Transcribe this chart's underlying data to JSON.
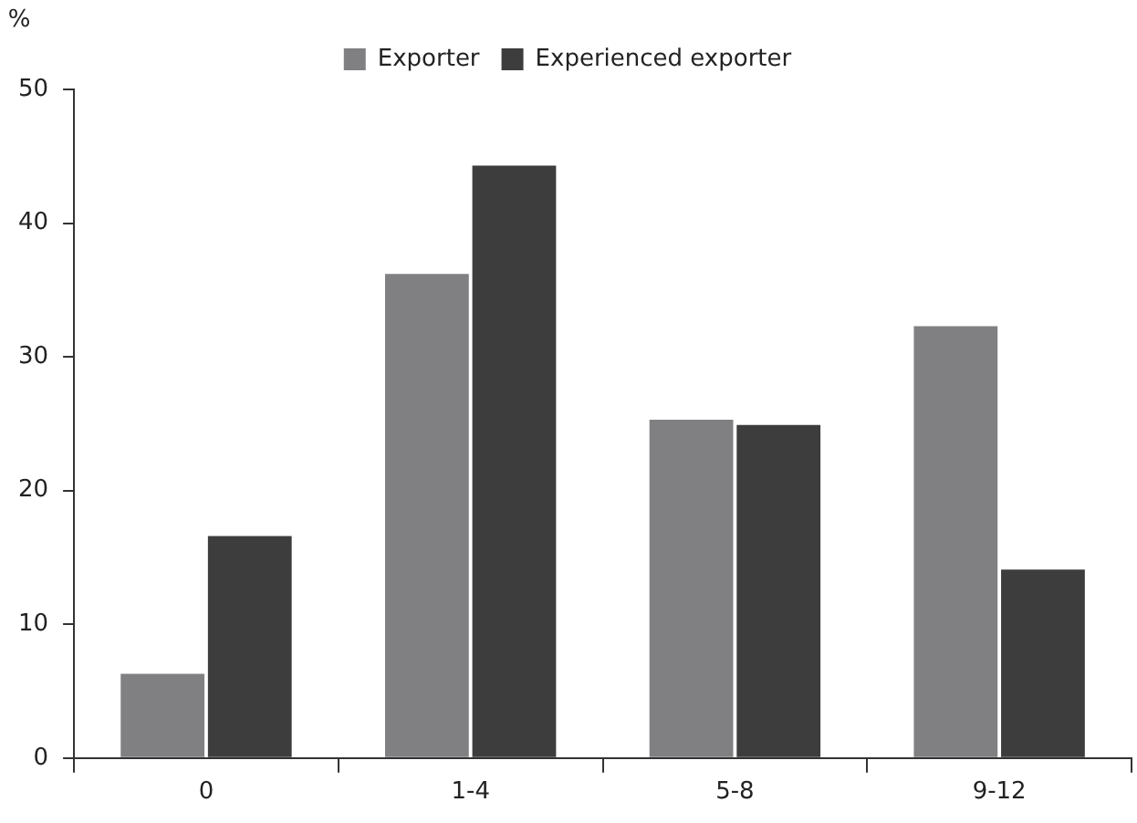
{
  "chart_data": {
    "type": "bar",
    "ylabel": "%",
    "categories": [
      "0",
      "1-4",
      "5-8",
      "9-12"
    ],
    "series": [
      {
        "name": "Exporter",
        "color": "#808082",
        "values": [
          6.3,
          36.2,
          25.3,
          32.3
        ]
      },
      {
        "name": "Experienced exporter",
        "color": "#3d3d3d",
        "values": [
          16.6,
          44.3,
          24.9,
          14.1
        ]
      }
    ],
    "ylim": [
      0,
      50
    ],
    "yticks": [
      0,
      10,
      20,
      30,
      40,
      50
    ],
    "grid": false,
    "legend": "top"
  }
}
